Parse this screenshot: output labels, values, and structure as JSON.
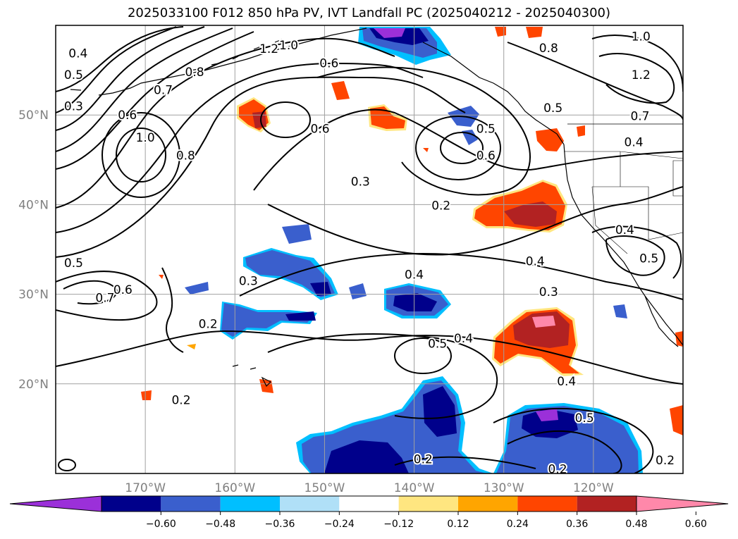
{
  "title": "2025033100 F012 850 hPa PV, IVT Landfall PC (2025040212 - 2025040300)",
  "map": {
    "lon_range": [
      -180,
      -110
    ],
    "lat_range": [
      10,
      60
    ],
    "grid_lons": [
      -170,
      -160,
      -150,
      -140,
      -130,
      -120
    ],
    "grid_lats": [
      20,
      30,
      40,
      50
    ],
    "lon_tick_labels": [
      "170°W",
      "160°W",
      "150°W",
      "140°W",
      "130°W",
      "120°W"
    ],
    "lat_tick_labels": [
      "20°N",
      "30°N",
      "40°N",
      "50°N"
    ]
  },
  "colorbar": {
    "tick_labels": [
      "−0.60",
      "−0.48",
      "−0.36",
      "−0.24",
      "−0.12",
      "0.12",
      "0.24",
      "0.36",
      "0.48",
      "0.60"
    ],
    "colors": [
      "#9b30d9",
      "#00008b",
      "#3a5fcd",
      "#00bfff",
      "#b0e0f7",
      "#ffffff",
      "#ffe680",
      "#ffa500",
      "#ff4500",
      "#b22222",
      "#ff88aa"
    ]
  },
  "contour_labels": [
    {
      "text": "0.4",
      "lon": -177.5,
      "lat": 56.9
    },
    {
      "text": "0.5",
      "lon": -178.0,
      "lat": 54.5
    },
    {
      "text": "0.3",
      "lon": -178.0,
      "lat": 51.0
    },
    {
      "text": "0.6",
      "lon": -172.0,
      "lat": 50.0
    },
    {
      "text": "0.7",
      "lon": -168.0,
      "lat": 52.8
    },
    {
      "text": "0.8",
      "lon": -164.5,
      "lat": 54.8
    },
    {
      "text": "1.0",
      "lon": -170.0,
      "lat": 47.5
    },
    {
      "text": "0.8",
      "lon": -165.5,
      "lat": 45.5
    },
    {
      "text": "1.2",
      "lon": -156.2,
      "lat": 57.4
    },
    {
      "text": "1.0",
      "lon": -154.0,
      "lat": 57.8
    },
    {
      "text": "0.6",
      "lon": -149.5,
      "lat": 55.8
    },
    {
      "text": "0.6",
      "lon": -150.5,
      "lat": 48.5
    },
    {
      "text": "0.5",
      "lon": -132.0,
      "lat": 48.5
    },
    {
      "text": "0.6",
      "lon": -132.0,
      "lat": 45.5
    },
    {
      "text": "0.5",
      "lon": -124.5,
      "lat": 50.8
    },
    {
      "text": "0.8",
      "lon": -125.0,
      "lat": 57.5
    },
    {
      "text": "1.0",
      "lon": -114.7,
      "lat": 58.8
    },
    {
      "text": "1.2",
      "lon": -114.7,
      "lat": 54.5
    },
    {
      "text": "0.7",
      "lon": -114.8,
      "lat": 49.9
    },
    {
      "text": "0.4",
      "lon": -115.5,
      "lat": 47.0
    },
    {
      "text": "0.3",
      "lon": -146.0,
      "lat": 42.6
    },
    {
      "text": "0.2",
      "lon": -137.0,
      "lat": 39.9
    },
    {
      "text": "0.4",
      "lon": -116.5,
      "lat": 37.2
    },
    {
      "text": "0.5",
      "lon": -113.8,
      "lat": 34.0
    },
    {
      "text": "0.4",
      "lon": -126.5,
      "lat": 33.7
    },
    {
      "text": "0.4",
      "lon": -140.0,
      "lat": 32.2
    },
    {
      "text": "0.3",
      "lon": -125.0,
      "lat": 30.3
    },
    {
      "text": "0.3",
      "lon": -158.5,
      "lat": 31.5
    },
    {
      "text": "0.5",
      "lon": -178.0,
      "lat": 33.5
    },
    {
      "text": "0.7",
      "lon": -174.5,
      "lat": 29.6
    },
    {
      "text": "0.6",
      "lon": -172.5,
      "lat": 30.5
    },
    {
      "text": "0.2",
      "lon": -163.0,
      "lat": 26.7
    },
    {
      "text": "0.5",
      "lon": -137.4,
      "lat": 24.5
    },
    {
      "text": "0.4",
      "lon": -134.5,
      "lat": 25.1
    },
    {
      "text": "0.4",
      "lon": -123.0,
      "lat": 20.3
    },
    {
      "text": "0.5",
      "lon": -121.0,
      "lat": 16.2
    },
    {
      "text": "0.2",
      "lon": -166.0,
      "lat": 18.2
    },
    {
      "text": "0.2",
      "lon": -139.0,
      "lat": 11.6
    },
    {
      "text": "0.2",
      "lon": -124.0,
      "lat": 10.5
    },
    {
      "text": "0.2",
      "lon": -112.0,
      "lat": 11.5
    }
  ]
}
